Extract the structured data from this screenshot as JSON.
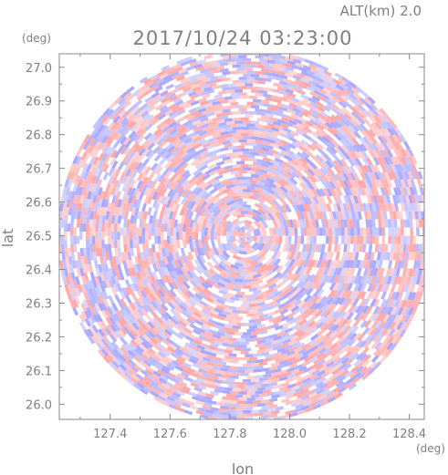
{
  "chart_data": {
    "type": "heatmap",
    "title": "2017/10/24 03:23:00",
    "subtitle": "ALT(km)  2.0",
    "xlabel": "lon",
    "ylabel": "lat",
    "x_unit": "(deg)",
    "y_unit": "(deg)",
    "xlim": [
      127.23,
      128.45
    ],
    "ylim": [
      25.955,
      27.04
    ],
    "x_ticks": [
      "127.4",
      "127.6",
      "127.8",
      "128.0",
      "128.2",
      "128.4"
    ],
    "y_ticks": [
      "26.0",
      "26.1",
      "26.2",
      "26.3",
      "26.4",
      "26.5",
      "26.6",
      "26.7",
      "26.8",
      "26.9",
      "27.0"
    ],
    "field": {
      "shape": "circle",
      "center_lon": 127.85,
      "center_lat": 26.5,
      "radius_deg": 0.555,
      "colormap": {
        "negative": "#a8a8ff",
        "zero": "#ffffff",
        "positive": "#ffa8a8"
      }
    },
    "grid": false
  }
}
